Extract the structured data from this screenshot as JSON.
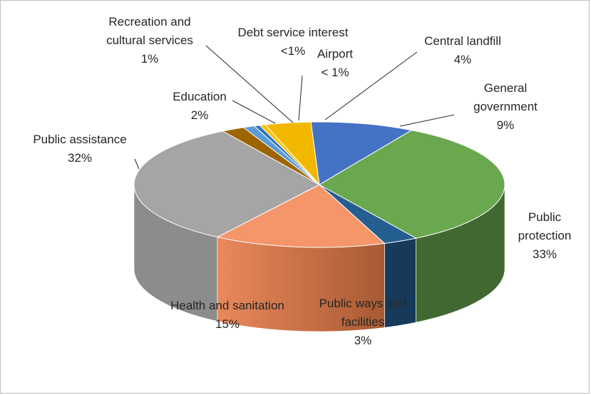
{
  "chart_data": {
    "type": "pie",
    "style": "3d",
    "title": "",
    "legend": "none",
    "slices": [
      {
        "category": "Central landfill",
        "label_lines": [
          "Central landfill"
        ],
        "pct_label": "4%",
        "value": 4,
        "color": "#f2b800"
      },
      {
        "category": "General government",
        "label_lines": [
          "General",
          "government"
        ],
        "pct_label": "9%",
        "value": 9,
        "color": "#4472c4"
      },
      {
        "category": "Public protection",
        "label_lines": [
          "Public",
          "protection"
        ],
        "pct_label": "33%",
        "value": 33,
        "color": "#6aa84f"
      },
      {
        "category": "Public ways and facilities",
        "label_lines": [
          "Public ways and",
          "facilities"
        ],
        "pct_label": "3%",
        "value": 3,
        "color": "#255e91"
      },
      {
        "category": "Health and sanitation",
        "label_lines": [
          "Health and sanitation"
        ],
        "pct_label": "15%",
        "value": 15,
        "color": "#f4956a"
      },
      {
        "category": "Public assistance",
        "label_lines": [
          "Public assistance"
        ],
        "pct_label": "32%",
        "value": 32,
        "color": "#a5a5a5"
      },
      {
        "category": "Education",
        "label_lines": [
          "Education"
        ],
        "pct_label": "2%",
        "value": 2,
        "color": "#9c6500"
      },
      {
        "category": "Recreation and cultural services",
        "label_lines": [
          "Recreation and",
          "cultural services"
        ],
        "pct_label": "1%",
        "value": 1,
        "color": "#5b9bd5"
      },
      {
        "category": "Debt service interest",
        "label_lines": [
          "Debt service interest"
        ],
        "pct_label": "<1%",
        "value": 0.5,
        "color": "#2e75b6"
      },
      {
        "category": "Airport",
        "label_lines": [
          "Airport"
        ],
        "pct_label": "< 1%",
        "value": 0.5,
        "color": "#ffc000"
      }
    ]
  }
}
